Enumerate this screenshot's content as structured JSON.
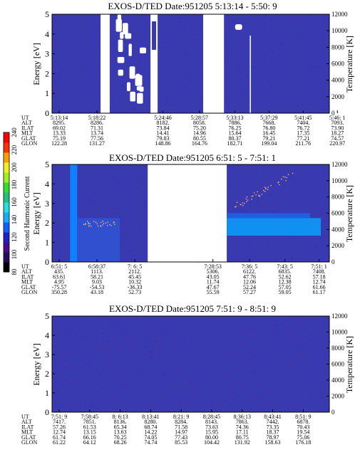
{
  "chart_data": [
    {
      "type": "heatmap",
      "title": "EXOS-D/TED   Date:951205  5:13:14 - 5:50: 9",
      "ylabel": "Energy [eV]",
      "y2label": "Temperature [K]",
      "ylim": [
        0,
        5
      ],
      "yticks": [
        "0",
        "1",
        "2",
        "3",
        "4",
        "5"
      ],
      "y2lim": [
        0,
        12000
      ],
      "y2ticks": [
        "0",
        "2000",
        "4000",
        "6000",
        "8000",
        "10000",
        "12000"
      ],
      "background": "#3a3ab0",
      "gaps": [
        [
          0.175,
          0.208
        ],
        [
          0.545,
          0.62
        ]
      ],
      "orbit_table": {
        "labels": [
          "UT",
          "ALT",
          "ILAT",
          "MLT",
          "GLAT",
          "GLON"
        ],
        "columns": [
          {
            "pos": 0.0,
            "values": [
              "5:13:14",
              "8295.",
              "69.02",
              "13.33",
              "75.19",
              "122.28"
            ]
          },
          {
            "pos": 0.155,
            "values": [
              "5:18:22",
              "8286.",
              "71.31",
              "13.74",
              "77.56",
              "131.27"
            ]
          },
          {
            "pos": 0.425,
            "values": [
              "5:24:46",
              "8182.",
              "73.84",
              "14.41",
              "79.83",
              "148.86"
            ]
          },
          {
            "pos": 0.575,
            "values": [
              "5:28:57",
              "8058.",
              "75.20",
              "14.96",
              "80.55",
              "164.76"
            ]
          },
          {
            "pos": 0.72,
            "values": [
              "5:33:13",
              "7886.",
              "76.25",
              "15.64",
              "80.37",
              "182.71"
            ]
          },
          {
            "pos": 0.86,
            "values": [
              "5:37:29",
              "7668.",
              "76.80",
              "16.45",
              "79.21",
              "199.04"
            ]
          },
          {
            "pos": 1.0,
            "values": [
              "5:41:45",
              "7404.",
              "76.72",
              "17.35",
              "77.21",
              "211.76"
            ]
          },
          {
            "pos": 1.14,
            "values": [
              "5:46: 1",
              "7093.",
              "73.90",
              "18.27",
              "74.57",
              "220.97"
            ]
          }
        ]
      }
    },
    {
      "type": "heatmap",
      "title": "EXOS-D/TED   Date:951205  6:51: 5 - 7:51: 1",
      "ylabel": "Energy [eV]",
      "y2label": "Temperature [K]",
      "ylim": [
        0,
        5
      ],
      "yticks": [
        "0",
        "1",
        "2",
        "3",
        "4",
        "5"
      ],
      "y2lim": [
        0,
        12000
      ],
      "y2ticks": [
        "0",
        "2000",
        "4000",
        "6000",
        "8000",
        "10000",
        "12000"
      ],
      "background": "#3a3ab0",
      "gaps": [
        [
          0.345,
          0.63
        ]
      ],
      "orbit_table": {
        "labels": [
          "UT",
          "ALT",
          "ILAT",
          "MLT",
          "GLAT",
          "GLON"
        ],
        "columns": [
          {
            "pos": 0.0,
            "values": [
              "6:51: 5",
              "435.",
              "63.61",
              "4.95",
              "-75.57",
              "350.28"
            ]
          },
          {
            "pos": 0.155,
            "values": [
              "6:58:37",
              "1113.",
              "58.21",
              "9.03",
              "-54.53",
              "43.18"
            ]
          },
          {
            "pos": 0.31,
            "values": [
              "7: 6: 5",
              "2112.",
              "45.45",
              "10.32",
              "-36.33",
              "52.73"
            ]
          },
          {
            "pos": 0.63,
            "values": [
              "7:28:53",
              "5306.",
              "43.05",
              "11.74",
              "47.67",
              "55.59"
            ]
          },
          {
            "pos": 0.78,
            "values": [
              "7:36: 5",
              "6122.",
              "47.76",
              "12.06",
              "52.24",
              "57.27"
            ]
          },
          {
            "pos": 0.925,
            "values": [
              "7:43: 5",
              "6835.",
              "52.62",
              "12.38",
              "57.05",
              "59.05"
            ]
          },
          {
            "pos": 1.065,
            "values": [
              "7:51: 1",
              "7408.",
              "57.18",
              "12.74",
              "61.66",
              "61.17"
            ]
          }
        ]
      }
    },
    {
      "type": "heatmap",
      "title": "EXOS-D/TED   Date:951205  7:51: 9 - 8:51: 9",
      "ylabel": "Energy [eV]",
      "y2label": "Temperature [K]",
      "ylim": [
        0,
        5
      ],
      "yticks": [
        "0",
        "1",
        "2",
        "3",
        "4",
        "5"
      ],
      "y2lim": [
        0,
        12000
      ],
      "y2ticks": [
        "0",
        "2000",
        "4000",
        "6000",
        "8000",
        "10000",
        "12000"
      ],
      "background": "#3a3ab0",
      "gaps": [],
      "orbit_table": {
        "labels": [
          "UT",
          "ALT",
          "ILAT",
          "MLT",
          "GLAT",
          "GLON"
        ],
        "columns": [
          {
            "pos": 0.0,
            "values": [
              "7:51: 9",
              "7417.",
              "57.26",
              "12.74",
              "61.74",
              "61.22"
            ]
          },
          {
            "pos": 0.125,
            "values": [
              "7:58:45",
              "7851.",
              "61.53",
              "13.15",
              "66.16",
              "64.12"
            ]
          },
          {
            "pos": 0.25,
            "values": [
              "8: 6:13",
              "8136.",
              "65.34",
              "13.63",
              "70.25",
              "68.26"
            ]
          },
          {
            "pos": 0.375,
            "values": [
              "8:13:41",
              "8280.",
              "68.74",
              "14.22",
              "74.05",
              "74.74"
            ]
          },
          {
            "pos": 0.5,
            "values": [
              "8:21: 9",
              "8284.",
              "71.58",
              "14.97",
              "77.43",
              "85.53"
            ]
          },
          {
            "pos": 0.625,
            "values": [
              "8:28:45",
              "8143.",
              "73.63",
              "15.95",
              "80.00",
              "104.42"
            ]
          },
          {
            "pos": 0.75,
            "values": [
              "8:36:13",
              "7863.",
              "74.36",
              "17.11",
              "80.75",
              "131.92"
            ]
          },
          {
            "pos": 0.875,
            "values": [
              "8:43:41",
              "7442.",
              "73.35",
              "18.37",
              "78.97",
              "158.63"
            ]
          },
          {
            "pos": 1.0,
            "values": [
              "8:51: 9",
              "6878.",
              "70.43",
              "19.54",
              "75.06",
              "176.18"
            ]
          }
        ]
      }
    }
  ],
  "colorbar": {
    "label": "Second Harmonic Current",
    "ticks": [
      "80",
      "100",
      "120",
      "140",
      "160",
      "180",
      "200",
      "220",
      "240"
    ],
    "colors": [
      "#000000",
      "#2a0a5a",
      "#4b0c8a",
      "#2020c8",
      "#1060ff",
      "#10b0ff",
      "#20e0e0",
      "#20c080",
      "#30e030",
      "#a0f020",
      "#f0f020",
      "#ffa000",
      "#ff3000",
      "#ff0000"
    ]
  }
}
